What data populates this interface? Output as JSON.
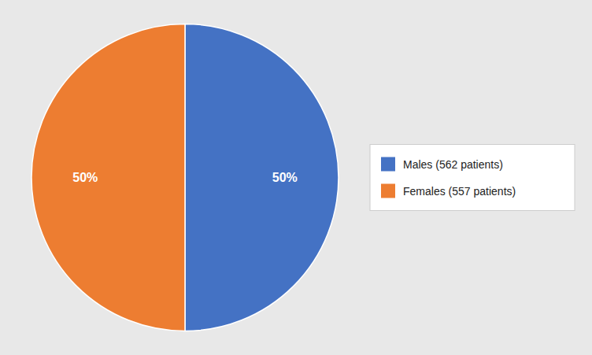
{
  "chart_data": {
    "type": "pie",
    "categories": [
      "Males (562 patients)",
      "Females (557 patients)"
    ],
    "values": [
      50,
      50
    ],
    "value_labels": [
      "50%",
      "50%"
    ],
    "colors": [
      "#4472C4",
      "#ED7D31"
    ],
    "data_labels": true,
    "legend": "right"
  }
}
